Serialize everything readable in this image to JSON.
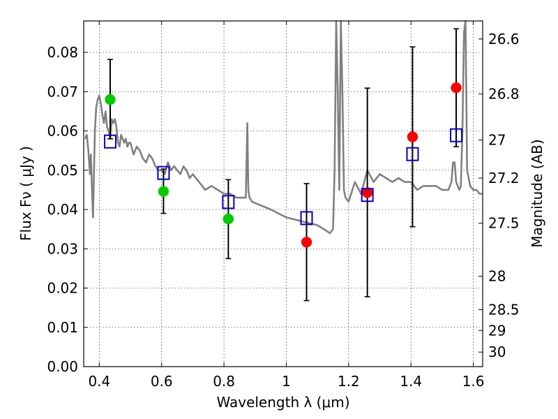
{
  "chart_data": {
    "type": "scatter",
    "xlabel": "Wavelength  λ (μm)",
    "ylabel_left": "Flux  Fν  ( μJy )",
    "ylabel_right": "Magnitude (AB)",
    "xlim": [
      0.35,
      1.63
    ],
    "ylim": [
      0.0,
      0.088
    ],
    "grid": true,
    "x_ticks": [
      {
        "value": 0.4,
        "label": "0.4"
      },
      {
        "value": 0.6,
        "label": "0.6"
      },
      {
        "value": 0.8,
        "label": "0.8"
      },
      {
        "value": 1.0,
        "label": "1"
      },
      {
        "value": 1.2,
        "label": "1.2"
      },
      {
        "value": 1.4,
        "label": "1.4"
      },
      {
        "value": 1.6,
        "label": "1.6"
      }
    ],
    "y_ticks": [
      {
        "value": 0.0,
        "label": "0.00"
      },
      {
        "value": 0.01,
        "label": "0.01"
      },
      {
        "value": 0.02,
        "label": "0.02"
      },
      {
        "value": 0.03,
        "label": "0.03"
      },
      {
        "value": 0.04,
        "label": "0.04"
      },
      {
        "value": 0.05,
        "label": "0.05"
      },
      {
        "value": 0.06,
        "label": "0.06"
      },
      {
        "value": 0.07,
        "label": "0.07"
      },
      {
        "value": 0.08,
        "label": "0.08"
      }
    ],
    "right_ticks": [
      {
        "flux": 0.0834,
        "label": "26.6"
      },
      {
        "flux": 0.0694,
        "label": "26.8"
      },
      {
        "flux": 0.0577,
        "label": "27"
      },
      {
        "flux": 0.048,
        "label": "27.2"
      },
      {
        "flux": 0.0365,
        "label": "27.5"
      },
      {
        "flux": 0.023,
        "label": "28"
      },
      {
        "flux": 0.0145,
        "label": "28.5"
      },
      {
        "flux": 0.0092,
        "label": "29"
      },
      {
        "flux": 0.0037,
        "label": "30"
      }
    ],
    "sed_model": {
      "color": "#808080",
      "x": [
        0.355,
        0.36,
        0.365,
        0.37,
        0.373,
        0.377,
        0.38,
        0.383,
        0.386,
        0.39,
        0.395,
        0.4,
        0.405,
        0.41,
        0.415,
        0.42,
        0.425,
        0.43,
        0.435,
        0.44,
        0.445,
        0.45,
        0.455,
        0.46,
        0.465,
        0.47,
        0.475,
        0.48,
        0.485,
        0.49,
        0.495,
        0.5,
        0.51,
        0.52,
        0.53,
        0.54,
        0.55,
        0.56,
        0.57,
        0.58,
        0.59,
        0.6,
        0.61,
        0.62,
        0.63,
        0.64,
        0.65,
        0.66,
        0.67,
        0.68,
        0.69,
        0.7,
        0.72,
        0.74,
        0.76,
        0.78,
        0.8,
        0.82,
        0.84,
        0.86,
        0.87,
        0.875,
        0.878,
        0.882,
        0.89,
        0.92,
        0.95,
        1.0,
        1.05,
        1.1,
        1.12,
        1.14,
        1.15,
        1.155,
        1.16,
        1.165,
        1.17,
        1.175,
        1.18,
        1.185,
        1.19,
        1.2,
        1.22,
        1.24,
        1.26,
        1.28,
        1.3,
        1.32,
        1.34,
        1.36,
        1.38,
        1.4,
        1.42,
        1.44,
        1.46,
        1.48,
        1.5,
        1.52,
        1.53,
        1.535,
        1.54,
        1.545,
        1.55,
        1.555,
        1.56,
        1.565,
        1.57,
        1.575,
        1.58,
        1.59,
        1.6,
        1.61,
        1.62,
        1.63
      ],
      "y": [
        0.058,
        0.059,
        0.055,
        0.049,
        0.054,
        0.044,
        0.038,
        0.049,
        0.06,
        0.066,
        0.068,
        0.069,
        0.067,
        0.064,
        0.062,
        0.065,
        0.061,
        0.06,
        0.058,
        0.063,
        0.062,
        0.063,
        0.061,
        0.057,
        0.056,
        0.059,
        0.058,
        0.057,
        0.058,
        0.056,
        0.057,
        0.057,
        0.054,
        0.056,
        0.055,
        0.053,
        0.052,
        0.054,
        0.053,
        0.051,
        0.05,
        0.05,
        0.049,
        0.052,
        0.05,
        0.051,
        0.05,
        0.049,
        0.051,
        0.05,
        0.048,
        0.049,
        0.047,
        0.045,
        0.046,
        0.045,
        0.044,
        0.044,
        0.043,
        0.043,
        0.043,
        0.062,
        0.045,
        0.043,
        0.042,
        0.041,
        0.04,
        0.038,
        0.037,
        0.036,
        0.035,
        0.034,
        0.035,
        0.05,
        0.09,
        0.07,
        0.045,
        0.095,
        0.07,
        0.045,
        0.043,
        0.042,
        0.047,
        0.044,
        0.05,
        0.047,
        0.049,
        0.048,
        0.047,
        0.048,
        0.047,
        0.047,
        0.045,
        0.046,
        0.046,
        0.046,
        0.045,
        0.045,
        0.047,
        0.052,
        0.052,
        0.047,
        0.046,
        0.045,
        0.046,
        0.06,
        0.085,
        0.095,
        0.05,
        0.046,
        0.045,
        0.045,
        0.044,
        0.044
      ]
    },
    "series": [
      {
        "marker": "circle",
        "color": "#00cc00",
        "points": [
          {
            "x": 0.435,
            "y": 0.068
          },
          {
            "x": 0.606,
            "y": 0.0446
          },
          {
            "x": 0.814,
            "y": 0.0376
          }
        ]
      },
      {
        "marker": "circle",
        "color": "#ff0000",
        "points": [
          {
            "x": 1.065,
            "y": 0.0317
          },
          {
            "x": 1.26,
            "y": 0.0443
          },
          {
            "x": 1.405,
            "y": 0.0585
          },
          {
            "x": 1.545,
            "y": 0.071
          }
        ]
      },
      {
        "marker": "open-square",
        "color": "#0000cc",
        "points": [
          {
            "x": 0.435,
            "y": 0.0573
          },
          {
            "x": 0.606,
            "y": 0.0493
          },
          {
            "x": 0.814,
            "y": 0.0419
          },
          {
            "x": 1.065,
            "y": 0.0378
          },
          {
            "x": 1.26,
            "y": 0.0437
          },
          {
            "x": 1.405,
            "y": 0.0541
          },
          {
            "x": 1.545,
            "y": 0.0589
          }
        ]
      }
    ],
    "error_bars": [
      {
        "x": 0.435,
        "low": 0.058,
        "high": 0.0782
      },
      {
        "x": 0.606,
        "low": 0.039,
        "high": 0.0503
      },
      {
        "x": 0.814,
        "low": 0.0275,
        "high": 0.0476
      },
      {
        "x": 1.065,
        "low": 0.0168,
        "high": 0.0466
      },
      {
        "x": 1.26,
        "low": 0.0178,
        "high": 0.0709
      },
      {
        "x": 1.405,
        "low": 0.0356,
        "high": 0.0814
      },
      {
        "x": 1.545,
        "low": 0.056,
        "high": 0.086
      }
    ]
  }
}
